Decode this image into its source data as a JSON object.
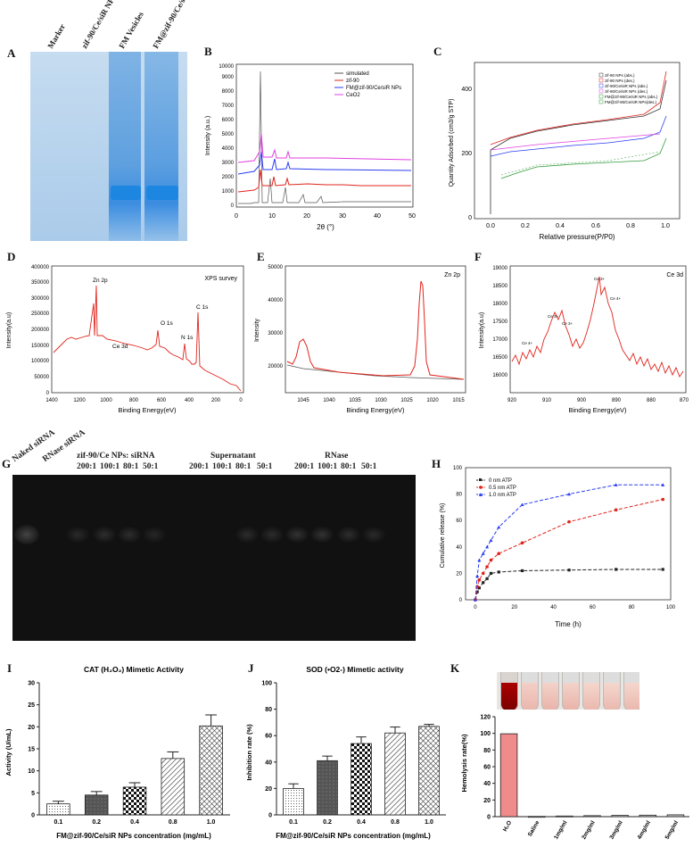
{
  "panels": {
    "A": {
      "label": "A",
      "lanes": [
        "Marker",
        "zif-90/Ce/siR NPs",
        "FM Vesicles",
        "FM@zif-90/Ce/siR NPs"
      ]
    },
    "B": {
      "label": "B",
      "xlabel": "2θ (°)",
      "ylabel": "Intensity (a.u.)",
      "legend": [
        "simulated",
        "zif-90",
        "FM@zif-90/Ce/siR NPs",
        "CeO2"
      ],
      "yticks": [
        "0",
        "1000",
        "2000",
        "3000",
        "4000",
        "5000",
        "6000",
        "7000",
        "8000",
        "9000",
        "10000"
      ],
      "xticks": [
        "0",
        "10",
        "20",
        "30",
        "40",
        "50"
      ]
    },
    "C": {
      "label": "C",
      "xlabel": "Relative pressure(P/P0)",
      "ylabel": "Quantity Adsorbed (cm3/g STP)",
      "legend": [
        "zif-90 NPs (abs.)",
        "zif-90 NPs (des.)",
        "zif-90/Ce/siR NPs (abs.)",
        "zif-90/Ce/siR NPs (des.)",
        "FM@zif-90/Ce/siR NPs (abs.)",
        "FM@zif-90/Ce/siR NPs(des.)"
      ],
      "yticks": [
        "0",
        "200",
        "400"
      ],
      "xticks": [
        "0.0",
        "0.2",
        "0.4",
        "0.6",
        "0.8",
        "1.0"
      ]
    },
    "D": {
      "label": "D",
      "title": "XPS survey",
      "xlabel": "Binding Energy(eV)",
      "ylabel": "Intensity(a.u)",
      "annotations": [
        "Zn 2p",
        "Ce 3d",
        "O 1s",
        "N 1s",
        "C 1s"
      ],
      "yticks": [
        "0",
        "50000",
        "100000",
        "150000",
        "200000",
        "250000",
        "300000",
        "350000",
        "400000"
      ],
      "xticks": [
        "1400",
        "1200",
        "1000",
        "800",
        "600",
        "400",
        "200",
        "0"
      ]
    },
    "E": {
      "label": "E",
      "title": "Zn 2p",
      "xlabel": "Binding Energy(eV)",
      "ylabel": "Intensity",
      "yticks": [
        "20000",
        "30000",
        "40000",
        "50000"
      ],
      "xticks": [
        "1045",
        "1040",
        "1035",
        "1030",
        "1025",
        "1020",
        "1015"
      ]
    },
    "F": {
      "label": "F",
      "title": "Ce 3d",
      "xlabel": "Binding Energy(eV)",
      "ylabel": "Intensity(a.u)",
      "annotations": [
        "Ce 4+",
        "Ce 3+",
        "Ce 3+",
        "Ce 3+",
        "Ce 4+"
      ],
      "yticks": [
        "16000",
        "16500",
        "17000",
        "17500",
        "18000",
        "18500",
        "19000"
      ],
      "xticks": [
        "920",
        "910",
        "900",
        "890",
        "880",
        "870"
      ]
    },
    "G": {
      "label": "G",
      "headers": [
        "Naked siRNA",
        "RNase siRNA",
        "zif-90/Ce  NPs: siRNA",
        "Supernatant",
        "RNase"
      ],
      "ratios": [
        "200:1",
        "100:1",
        "80:1",
        "50:1",
        "200:1",
        "100:1",
        "80:1",
        "50:1",
        "200:1",
        "100:1",
        "80:1",
        "50:1"
      ]
    },
    "H": {
      "label": "H",
      "xlabel": "Time (h)",
      "ylabel": "Cumulative release (%)",
      "legend": [
        "0 nm ATP",
        "0.5 nm ATP",
        "1.0 nm ATP"
      ],
      "yticks": [
        "0",
        "20",
        "40",
        "60",
        "80",
        "100"
      ],
      "xticks": [
        "0",
        "20",
        "40",
        "60",
        "80",
        "100"
      ]
    },
    "I": {
      "label": "I",
      "title": "CAT (H₂O₂) Mimetic Activity",
      "xlabel": "FM@zif-90/Ce/siR NPs concentration (mg/mL)",
      "ylabel": "Activity (U/mL)",
      "yticks": [
        "0",
        "5",
        "10",
        "15",
        "20",
        "25",
        "30"
      ],
      "categories": [
        "0.1",
        "0.2",
        "0.4",
        "0.8",
        "1.0"
      ]
    },
    "J": {
      "label": "J",
      "title": "SOD (•O2-) Mimetic activity",
      "xlabel": "FM@zif-90/Ce/siR NPs concentration (mg/mL)",
      "ylabel": "Inhibition rate (%)",
      "yticks": [
        "0",
        "20",
        "40",
        "60",
        "80",
        "100"
      ],
      "categories": [
        "0.1",
        "0.2",
        "0.4",
        "0.8",
        "1.0"
      ]
    },
    "K": {
      "label": "K",
      "ylabel": "Hemolysis rate(%)",
      "yticks": [
        "0",
        "20",
        "40",
        "60",
        "80",
        "100",
        "120"
      ],
      "categories": [
        "H₂O",
        "Saline",
        "1mg/ml",
        "2mg/ml",
        "3mg/ml",
        "4mg/ml",
        "5mg/ml"
      ]
    }
  },
  "chart_data": [
    {
      "type": "line",
      "panel": "H",
      "x": [
        0,
        1,
        2,
        4,
        6,
        8,
        12,
        24,
        48,
        72,
        96
      ],
      "series": [
        {
          "name": "0 nm ATP",
          "values": [
            0,
            6,
            9,
            13,
            16,
            20,
            21,
            22,
            22.5,
            23,
            23
          ]
        },
        {
          "name": "0.5 nm ATP",
          "values": [
            0,
            10,
            15,
            20,
            25,
            30,
            35,
            43,
            59,
            68,
            76
          ]
        },
        {
          "name": "1.0 nm ATP",
          "values": [
            0,
            18,
            30,
            35,
            40,
            45,
            55,
            72,
            80,
            87,
            87
          ]
        }
      ],
      "xlabel": "Time (h)",
      "ylabel": "Cumulative release (%)",
      "xlim": [
        -5,
        100
      ],
      "ylim": [
        0,
        100
      ]
    },
    {
      "type": "bar",
      "panel": "I",
      "categories": [
        "0.1",
        "0.2",
        "0.4",
        "0.8",
        "1.0"
      ],
      "values": [
        2.5,
        4.5,
        6.3,
        12.8,
        20.2
      ],
      "errors": [
        0.6,
        0.8,
        1.0,
        1.5,
        2.5
      ],
      "title": "CAT (H₂O₂) Mimetic Activity",
      "ylabel": "Activity (U/mL)",
      "ylim": [
        0,
        30
      ]
    },
    {
      "type": "bar",
      "panel": "J",
      "categories": [
        "0.1",
        "0.2",
        "0.4",
        "0.8",
        "1.0"
      ],
      "values": [
        20,
        41,
        54,
        62,
        67
      ],
      "errors": [
        3.5,
        3.5,
        5,
        4.5,
        1.5
      ],
      "title": "SOD (•O2-) Mimetic activity",
      "ylabel": "Inhibition rate (%)",
      "ylim": [
        0,
        100
      ]
    },
    {
      "type": "bar",
      "panel": "K",
      "categories": [
        "H₂O",
        "Saline",
        "1mg/ml",
        "2mg/ml",
        "3mg/ml",
        "4mg/ml",
        "5mg/ml"
      ],
      "values": [
        99.5,
        0.3,
        0.8,
        1.2,
        1.5,
        1.8,
        2.2
      ],
      "ylabel": "Hemolysis rate(%)",
      "ylim": [
        0,
        120
      ]
    }
  ],
  "colors": {
    "gelA": "#b8d4ec",
    "band": "#1e7ed6",
    "red": "#e0241c",
    "blue": "#2a3df0",
    "green": "#2f9a3a",
    "magenta": "#e040e0",
    "black": "#222222",
    "pink": "#f08b8b"
  }
}
